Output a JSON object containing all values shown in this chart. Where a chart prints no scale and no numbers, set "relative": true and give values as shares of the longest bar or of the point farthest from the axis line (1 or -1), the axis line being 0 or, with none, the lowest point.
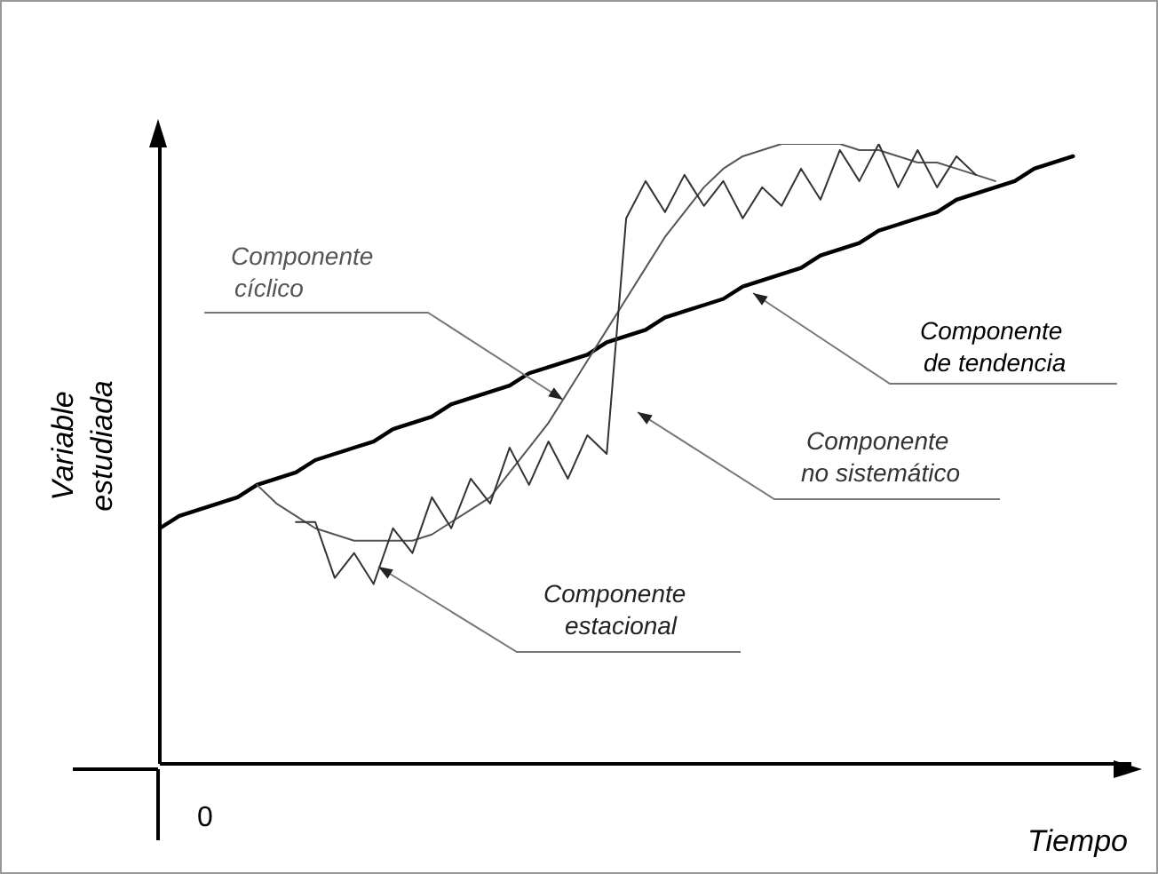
{
  "chart_data": {
    "type": "line",
    "relative": true,
    "xlabel": "Tiempo",
    "ylabel": "Variable estudiada",
    "categories": [
      null,
      null,
      null,
      null,
      null,
      null,
      null,
      null,
      null,
      null,
      null,
      null,
      null,
      null,
      null,
      null,
      null,
      null,
      null,
      null,
      null,
      null,
      null,
      null,
      null,
      null,
      null,
      null,
      null,
      null,
      null,
      null,
      null,
      null,
      null,
      null,
      null,
      null,
      null,
      null,
      null,
      null,
      null,
      null,
      null,
      null,
      null,
      null
    ],
    "series": [
      {
        "name": "Componente de tendencia",
        "color": "#000000",
        "values": [
          0.38,
          0.4,
          0.41,
          0.42,
          0.43,
          0.45,
          0.46,
          0.47,
          0.49,
          0.5,
          0.51,
          0.52,
          0.54,
          0.55,
          0.56,
          0.58,
          0.59,
          0.6,
          0.61,
          0.63,
          0.64,
          0.65,
          0.66,
          0.68,
          0.69,
          0.7,
          0.72,
          0.73,
          0.74,
          0.75,
          0.77,
          0.78,
          0.79,
          0.8,
          0.82,
          0.83,
          0.84,
          0.86,
          0.87,
          0.88,
          0.89,
          0.91,
          0.92,
          0.93,
          0.94,
          0.96,
          0.97,
          0.98
        ]
      },
      {
        "name": "Componente cíclico",
        "color": "#555555",
        "values": [
          null,
          null,
          null,
          null,
          null,
          0.45,
          0.42,
          0.4,
          0.38,
          0.37,
          0.36,
          0.36,
          0.36,
          0.36,
          0.37,
          0.39,
          0.41,
          0.43,
          0.47,
          0.51,
          0.55,
          0.6,
          0.65,
          0.7,
          0.75,
          0.8,
          0.85,
          0.89,
          0.93,
          0.96,
          0.98,
          0.99,
          1.0,
          1.0,
          1.0,
          1.0,
          0.99,
          0.99,
          0.98,
          0.97,
          0.97,
          0.96,
          0.95,
          0.94,
          null,
          null,
          null,
          null
        ]
      },
      {
        "name": "Componente no sistemático",
        "color": "#333333",
        "values": [
          null,
          null,
          null,
          null,
          null,
          null,
          null,
          0.39,
          0.39,
          0.3,
          0.34,
          0.29,
          0.38,
          0.34,
          0.43,
          0.38,
          0.46,
          0.42,
          0.51,
          0.45,
          0.52,
          0.46,
          0.53,
          0.5,
          0.88,
          0.94,
          0.89,
          0.95,
          0.9,
          0.94,
          0.88,
          0.93,
          0.9,
          0.96,
          0.91,
          0.99,
          0.94,
          1.0,
          0.93,
          0.99,
          0.93,
          0.98,
          0.95,
          null,
          null,
          null,
          null,
          null
        ]
      }
    ],
    "annotations": [
      "Componente estacional",
      "0"
    ]
  }
}
